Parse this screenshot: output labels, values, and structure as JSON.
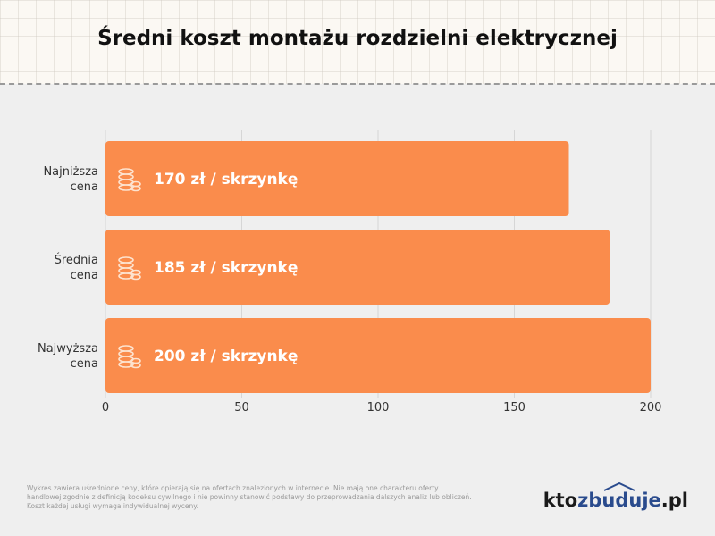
{
  "title": "Średni koszt montażu rozdzielni elektrycznej",
  "footnote": "Wykres zawiera uśrednione ceny, które opierają się na ofertach znalezionych w internecie. Nie mają one charakteru oferty handlowej zgodnie z definicją kodeksu cywilnego i nie powinny stanowić podstawy do przeprowadzania dalszych analiz lub obliczeń. Koszt każdej usługi wymaga indywidualnej wyceny.",
  "logo": {
    "part1": "kto",
    "part2": "zbuduje",
    "part3": ".pl"
  },
  "colors": {
    "bar": "#fa8c4c",
    "grid": "#d6d6d6",
    "text": "#333333",
    "background": "#efefef",
    "logo_accent": "#2a4b8d"
  },
  "bar_icon": "coins-icon",
  "chart_data": {
    "type": "bar",
    "orientation": "horizontal",
    "categories": [
      [
        "Najniższa",
        "cena"
      ],
      [
        "Średnia",
        "cena"
      ],
      [
        "Najwyższa",
        "cena"
      ]
    ],
    "values": [
      170,
      185,
      200
    ],
    "data_labels": [
      "170 zł / skrzynkę",
      "185 zł / skrzynkę",
      "200 zł / skrzynkę"
    ],
    "xticks": [
      0,
      50,
      100,
      150,
      200
    ],
    "xlim": [
      0,
      200
    ],
    "grid": true,
    "title": "Średni koszt montażu rozdzielni elektrycznej"
  }
}
